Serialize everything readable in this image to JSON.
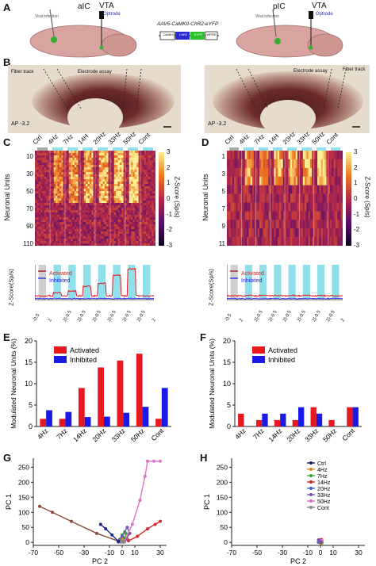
{
  "panelA": {
    "label": "A",
    "left": {
      "region": "aIC",
      "injection": "Viral infection",
      "target": "VTA",
      "optrode": "Optrode"
    },
    "right": {
      "region": "pIC",
      "injection": "Viral infection",
      "target": "VTA",
      "optrode": "Optrode"
    },
    "construct": {
      "title": "AAV5-CaMKII-ChR2-eYFP",
      "parts": [
        "CaMKII",
        "ChR2",
        "EYFP",
        "WPRE"
      ]
    }
  },
  "panelB": {
    "label": "B",
    "left": {
      "fiber": "Fiber track",
      "electrode": "Electrode assay",
      "ap": "AP -3.2"
    },
    "right": {
      "fiber": "Fiber track",
      "electrode": "Electrode assay",
      "ap": "AP -3.2"
    }
  },
  "panelC": {
    "label": "C",
    "conditions": [
      "Ctrl",
      "4Hz",
      "7Hz",
      "14H",
      "20Hz",
      "33Hz",
      "50Hz",
      "Cont"
    ],
    "yaxis": "Neuronal Units",
    "yticks": [
      "10",
      "30",
      "50",
      "70",
      "90",
      "110"
    ],
    "cbar_label": "Z-Score (Sp/s)",
    "cbar_ticks": [
      "3",
      "2",
      "1",
      "0",
      "-1",
      "-2",
      "-3"
    ],
    "trace_ylabel": "Z-Score(Sp/s)",
    "legend": [
      "Activated",
      "Inhibited"
    ],
    "xticks": [
      "-0.5",
      "2",
      "2|-0.5",
      "2|-0.5",
      "2|-0.5",
      "2|-0.5",
      "2|-0.5",
      "2|-0.5",
      "2"
    ]
  },
  "panelD": {
    "label": "D",
    "conditions": [
      "Ctrl",
      "4Hz",
      "7Hz",
      "14H",
      "20Hz",
      "33Hz",
      "50Hz",
      "Cont"
    ],
    "yaxis": "Neuronal Units",
    "yticks": [
      "1",
      "3",
      "5",
      "7",
      "9",
      "11"
    ],
    "cbar_label": "Z-Score (Sp/s)",
    "cbar_ticks": [
      "3",
      "2",
      "1",
      "0",
      "-1",
      "-2",
      "-3"
    ],
    "trace_ylabel": "Z-Score(Sp/s)",
    "legend": [
      "Activated",
      "Inhibited"
    ],
    "xticks": [
      "-0.5",
      "2",
      "2|-0.5",
      "2|-0.5",
      "2|-0.5",
      "2|-0.5",
      "2|-0.5",
      "2|-0.5",
      "2"
    ]
  },
  "colors": {
    "activated": "#e8181e",
    "inhibited": "#1a1ae6",
    "stim": "#8fe0ea",
    "ctrl": "#a8a8a8"
  },
  "chart_data": [
    {
      "id": "E",
      "type": "bar",
      "label": "E",
      "ylabel": "Modulated Neuronal Units (%)",
      "ylim": [
        0,
        20
      ],
      "yticks": [
        0,
        5,
        10,
        15,
        20
      ],
      "categories": [
        "4Hz",
        "7Hz",
        "14Hz",
        "20Hz",
        "33Hz",
        "50Hz",
        "Cont"
      ],
      "series": [
        {
          "name": "Activated",
          "values": [
            1.8,
            1.8,
            9.0,
            13.8,
            15.4,
            17.0,
            1.8
          ]
        },
        {
          "name": "Inhibited",
          "values": [
            3.8,
            3.4,
            2.2,
            2.3,
            3.2,
            4.6,
            9.0
          ]
        }
      ],
      "legend_position": "top-left"
    },
    {
      "id": "F",
      "type": "bar",
      "label": "F",
      "ylabel": "Modulated Neuronal Units (%)",
      "ylim": [
        0,
        20
      ],
      "yticks": [
        0,
        5,
        10,
        15,
        20
      ],
      "categories": [
        "4Hz",
        "7Hz",
        "14Hz",
        "20Hz",
        "33Hz",
        "50Hz",
        "Cont"
      ],
      "series": [
        {
          "name": "Activated",
          "values": [
            3.0,
            1.5,
            1.5,
            1.5,
            4.5,
            1.5,
            4.5
          ]
        },
        {
          "name": "Inhibited",
          "values": [
            0,
            3.0,
            3.0,
            4.5,
            3.0,
            0,
            4.5
          ]
        }
      ],
      "legend_position": "top-left"
    },
    {
      "id": "G",
      "type": "line",
      "label": "G",
      "xlabel": "PC 2",
      "ylabel": "PC 1",
      "xlim": [
        -70,
        35
      ],
      "ylim": [
        -10,
        280
      ],
      "xticks": [
        -70,
        -50,
        -30,
        -10,
        0,
        10,
        30
      ],
      "yticks": [
        0,
        50,
        100,
        150,
        200,
        250
      ],
      "series": [
        {
          "name": "Ctrl",
          "color": "#1a1a60",
          "x": [
            -3,
            -2,
            -1,
            0,
            1
          ],
          "y": [
            2,
            4,
            3,
            5,
            2
          ]
        },
        {
          "name": "4Hz",
          "color": "#e08a2a",
          "x": [
            -2,
            0,
            2,
            4,
            5
          ],
          "y": [
            5,
            10,
            15,
            12,
            8
          ]
        },
        {
          "name": "7Hz",
          "color": "#3aa63a",
          "x": [
            -2,
            0,
            2,
            3,
            2
          ],
          "y": [
            10,
            25,
            35,
            30,
            15
          ]
        },
        {
          "name": "14Hz",
          "color": "#d62a2a",
          "x": [
            5,
            12,
            20,
            26,
            30
          ],
          "y": [
            5,
            20,
            45,
            60,
            70
          ]
        },
        {
          "name": "20Hz",
          "color": "#7a4fb0",
          "x": [
            -3,
            0,
            4,
            6,
            3
          ],
          "y": [
            5,
            20,
            50,
            30,
            10
          ]
        },
        {
          "name": "33Hz",
          "color": "#8a4a3a",
          "x": [
            -2,
            -20,
            -40,
            -55,
            -65
          ],
          "y": [
            3,
            30,
            70,
            100,
            120
          ]
        },
        {
          "name": "50Hz",
          "color": "#e070c8",
          "x": [
            2,
            8,
            14,
            18,
            20,
            25,
            30
          ],
          "y": [
            5,
            60,
            140,
            220,
            270,
            270,
            270
          ]
        },
        {
          "name": "Cont",
          "color": "#8a8a8a",
          "x": [
            -1,
            0,
            1,
            2,
            1
          ],
          "y": [
            1,
            3,
            5,
            2,
            1
          ]
        },
        {
          "name": "navy",
          "color": "#1a2a8a",
          "x": [
            -3,
            -8,
            -13,
            -17
          ],
          "y": [
            3,
            25,
            45,
            60
          ]
        }
      ]
    },
    {
      "id": "H",
      "type": "scatter",
      "label": "H",
      "xlabel": "PC 2",
      "ylabel": "PC 1",
      "xlim": [
        -70,
        35
      ],
      "ylim": [
        -10,
        280
      ],
      "xticks": [
        -70,
        -50,
        -30,
        -10,
        0,
        10,
        30
      ],
      "yticks": [
        0,
        50,
        100,
        150,
        200,
        250
      ],
      "legend": [
        "Ctrl",
        "4Hz",
        "7Hz",
        "14Hz",
        "20Hz",
        "33Hz",
        "50Hz",
        "Cont"
      ],
      "legend_colors": [
        "#1a1a60",
        "#e08a2a",
        "#3aa63a",
        "#d62a2a",
        "#3a6ad6",
        "#7a4fb0",
        "#e070c8",
        "#8a8a8a"
      ],
      "cluster": {
        "x": 0,
        "y": 3
      }
    }
  ]
}
